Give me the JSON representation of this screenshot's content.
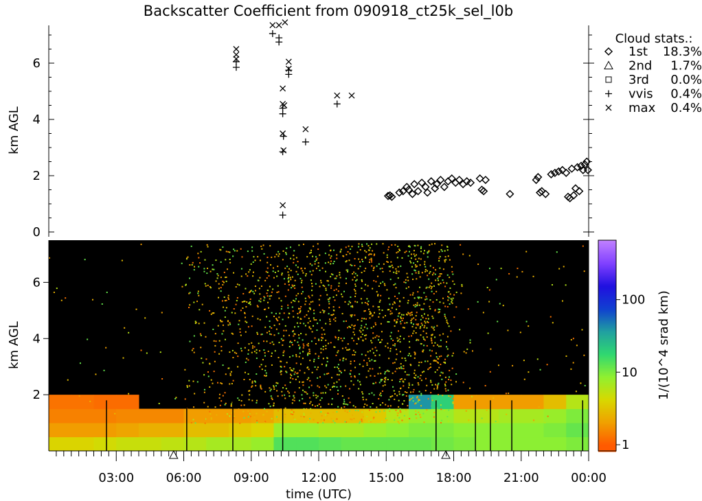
{
  "chart_data": [
    {
      "type": "scatter",
      "title": "Backscatter Coefficient from 090918_ct25k_sel_l0b",
      "ylabel": "km AGL",
      "ylim": [
        0,
        7.4
      ],
      "yticks": [
        "0",
        "2",
        "4",
        "6"
      ],
      "xlim": [
        "00:00",
        "24:00"
      ],
      "legend": {
        "placement": "right",
        "title": "Cloud stats.:",
        "entries": [
          {
            "symbol": "diamond",
            "name": "1st",
            "value": "18.3%"
          },
          {
            "symbol": "triangle",
            "name": "2nd",
            "value": "1.7%"
          },
          {
            "symbol": "square",
            "name": "3rd",
            "value": "0.0%"
          },
          {
            "symbol": "plus",
            "name": "vvis",
            "value": "0.4%"
          },
          {
            "symbol": "cross",
            "name": "max",
            "value": "0.4%"
          }
        ]
      },
      "series": [
        {
          "name": "1st",
          "symbol": "diamond",
          "points": [
            [
              "15:05",
              1.28
            ],
            [
              "15:10",
              1.3
            ],
            [
              "15:15",
              1.25
            ],
            [
              "15:35",
              1.4
            ],
            [
              "15:45",
              1.45
            ],
            [
              "15:55",
              1.6
            ],
            [
              "16:00",
              1.5
            ],
            [
              "16:10",
              1.35
            ],
            [
              "16:15",
              1.7
            ],
            [
              "16:25",
              1.45
            ],
            [
              "16:35",
              1.75
            ],
            [
              "16:45",
              1.6
            ],
            [
              "16:50",
              1.4
            ],
            [
              "17:00",
              1.8
            ],
            [
              "17:10",
              1.55
            ],
            [
              "17:15",
              1.7
            ],
            [
              "17:25",
              1.85
            ],
            [
              "17:35",
              1.6
            ],
            [
              "17:45",
              1.8
            ],
            [
              "17:55",
              1.9
            ],
            [
              "18:05",
              1.75
            ],
            [
              "18:15",
              1.85
            ],
            [
              "18:25",
              1.7
            ],
            [
              "18:35",
              1.8
            ],
            [
              "18:45",
              1.75
            ],
            [
              "19:10",
              1.9
            ],
            [
              "19:15",
              1.5
            ],
            [
              "19:20",
              1.45
            ],
            [
              "19:25",
              1.85
            ],
            [
              "20:30",
              1.35
            ],
            [
              "21:40",
              1.85
            ],
            [
              "21:45",
              1.95
            ],
            [
              "21:50",
              1.4
            ],
            [
              "21:55",
              1.45
            ],
            [
              "22:05",
              1.35
            ],
            [
              "22:20",
              2.05
            ],
            [
              "22:30",
              2.1
            ],
            [
              "22:40",
              2.15
            ],
            [
              "22:50",
              2.2
            ],
            [
              "23:00",
              2.1
            ],
            [
              "23:05",
              1.25
            ],
            [
              "23:10",
              1.2
            ],
            [
              "23:15",
              2.25
            ],
            [
              "23:20",
              1.3
            ],
            [
              "23:25",
              1.55
            ],
            [
              "23:30",
              2.3
            ],
            [
              "23:35",
              1.45
            ],
            [
              "23:40",
              2.35
            ],
            [
              "23:45",
              2.2
            ],
            [
              "23:50",
              2.4
            ],
            [
              "23:55",
              2.5
            ],
            [
              "23:58",
              2.2
            ]
          ]
        },
        {
          "name": "vvis",
          "symbol": "plus",
          "points": [
            [
              "08:20",
              6.05
            ],
            [
              "08:20",
              5.85
            ],
            [
              "09:57",
              7.05
            ],
            [
              "10:14",
              6.9
            ],
            [
              "10:14",
              6.75
            ],
            [
              "10:24",
              4.4
            ],
            [
              "10:24",
              4.2
            ],
            [
              "10:26",
              3.4
            ],
            [
              "10:24",
              2.85
            ],
            [
              "10:24",
              0.6
            ],
            [
              "10:40",
              5.75
            ],
            [
              "10:40",
              5.6
            ],
            [
              "11:25",
              3.2
            ],
            [
              "12:49",
              4.55
            ]
          ]
        },
        {
          "name": "max",
          "symbol": "cross",
          "points": [
            [
              "08:20",
              6.5
            ],
            [
              "08:20",
              6.3
            ],
            [
              "08:20",
              6.15
            ],
            [
              "09:57",
              7.35
            ],
            [
              "10:14",
              7.35
            ],
            [
              "10:30",
              7.45
            ],
            [
              "10:24",
              5.1
            ],
            [
              "10:24",
              4.55
            ],
            [
              "10:28",
              4.5
            ],
            [
              "10:24",
              3.5
            ],
            [
              "10:26",
              2.9
            ],
            [
              "10:24",
              0.95
            ],
            [
              "10:40",
              6.05
            ],
            [
              "10:40",
              5.8
            ],
            [
              "11:25",
              3.65
            ],
            [
              "12:49",
              4.85
            ],
            [
              "13:28",
              4.85
            ]
          ]
        },
        {
          "name": "2nd",
          "symbol": "triangle",
          "points": [
            [
              "05:33",
              0
            ],
            [
              "17:39",
              0
            ]
          ]
        }
      ]
    },
    {
      "type": "heatmap",
      "xlabel": "time (UTC)",
      "ylabel": "km AGL",
      "ylim": [
        0,
        7.5
      ],
      "yticks": [
        "2",
        "4",
        "6"
      ],
      "xticks": [
        "03:00",
        "06:00",
        "09:00",
        "12:00",
        "15:00",
        "18:00",
        "21:00",
        "00:00"
      ],
      "colorbar": {
        "label": "1/(10^4 srad km)",
        "scale": "log",
        "range": [
          1,
          660
        ],
        "ticks": [
          "1",
          "10",
          "100"
        ],
        "colors": [
          "#ff5a00",
          "#f0a000",
          "#d8d800",
          "#90f030",
          "#30d870",
          "#20a0a0",
          "#1040d0",
          "#2010e0",
          "#8040ff",
          "#c080ff"
        ]
      },
      "row_height_km": 0.5,
      "hour_columns": [
        [
          4,
          2,
          1.5,
          1.3,
          0,
          0,
          0,
          0,
          0,
          0,
          0,
          0,
          0,
          0,
          0
        ],
        [
          4,
          2,
          1.5,
          1.3,
          0,
          0,
          0,
          0,
          0,
          0,
          0,
          0,
          0,
          0,
          0
        ],
        [
          4.5,
          2,
          1.5,
          1.2,
          0,
          0,
          0,
          0,
          0,
          0,
          0,
          0,
          0,
          0,
          0
        ],
        [
          5,
          2.2,
          1.6,
          1.2,
          0,
          0,
          0,
          0,
          0,
          0,
          0,
          0,
          0,
          0,
          0
        ],
        [
          5,
          2.5,
          1.6,
          0,
          0,
          0,
          0,
          0,
          0,
          0,
          0,
          0,
          0,
          0,
          0
        ],
        [
          5.5,
          2.5,
          1.6,
          0,
          0,
          0,
          0,
          0,
          0,
          0,
          0,
          0,
          0,
          0,
          0
        ],
        [
          6,
          3,
          2,
          0,
          0,
          0,
          0,
          0,
          0,
          0,
          0,
          0,
          0,
          0,
          0
        ],
        [
          7,
          3,
          2,
          0,
          0,
          0,
          0,
          0,
          0,
          0,
          0,
          0,
          0,
          0,
          0
        ],
        [
          7,
          3.5,
          2,
          0,
          0,
          0,
          0,
          0,
          0,
          0,
          0,
          0,
          0,
          0,
          0
        ],
        [
          8,
          4,
          2.2,
          0,
          0,
          0,
          0,
          0,
          0,
          0,
          0,
          0,
          0,
          0,
          0
        ],
        [
          14,
          8,
          3,
          0,
          0,
          0,
          0,
          0,
          0,
          0,
          0,
          0,
          0,
          0,
          0
        ],
        [
          14,
          8,
          3,
          0,
          0,
          0,
          0,
          0,
          0,
          0,
          0,
          0,
          0,
          0,
          0
        ],
        [
          13,
          7,
          3,
          0,
          0,
          0,
          0,
          0,
          0,
          0,
          0,
          0,
          0,
          0,
          0
        ],
        [
          12,
          7,
          3,
          0,
          0,
          0,
          0,
          0,
          0,
          0,
          0,
          0,
          0,
          0,
          0
        ],
        [
          12,
          8,
          3.5,
          0,
          0,
          0,
          0,
          0,
          0,
          0,
          0,
          0,
          0,
          0,
          0
        ],
        [
          12,
          9,
          6,
          0,
          0,
          0,
          0,
          0,
          0,
          0,
          0,
          0,
          0,
          0,
          0
        ],
        [
          12,
          10,
          8,
          40,
          0,
          0,
          0,
          0,
          0,
          0,
          0,
          0,
          0,
          0,
          0
        ],
        [
          11,
          10,
          8,
          20,
          0,
          0,
          0,
          0,
          0,
          0,
          0,
          0,
          0,
          0,
          0
        ],
        [
          10,
          9,
          6,
          2,
          0,
          0,
          0,
          0,
          0,
          0,
          0,
          0,
          0,
          0,
          0
        ],
        [
          9,
          9,
          6,
          2,
          0,
          0,
          0,
          0,
          0,
          0,
          0,
          0,
          0,
          0,
          0
        ],
        [
          9,
          9,
          7,
          2,
          0,
          0,
          0,
          0,
          0,
          0,
          0,
          0,
          0,
          0,
          0
        ],
        [
          9,
          9,
          7,
          2,
          0,
          0,
          0,
          0,
          0,
          0,
          0,
          0,
          0,
          0,
          0
        ],
        [
          9,
          10,
          8,
          3,
          0,
          0,
          0,
          0,
          0,
          0,
          0,
          0,
          0,
          0,
          0
        ],
        [
          10,
          12,
          10,
          6,
          0,
          0,
          0,
          0,
          0,
          0,
          0,
          0,
          0,
          0,
          0
        ]
      ],
      "speckle_density_by_hour": [
        0.01,
        0.01,
        0.01,
        0.01,
        0.01,
        0.01,
        0.12,
        0.18,
        0.2,
        0.25,
        0.3,
        0.32,
        0.3,
        0.3,
        0.3,
        0.35,
        0.38,
        0.3,
        0.04,
        0.03,
        0.02,
        0.02,
        0.02,
        0.02
      ],
      "data_gap_lines": [
        "02:34",
        "06:08",
        "08:11",
        "10:24",
        "17:13",
        "18:58",
        "19:38",
        "20:35",
        "23:44"
      ]
    }
  ]
}
